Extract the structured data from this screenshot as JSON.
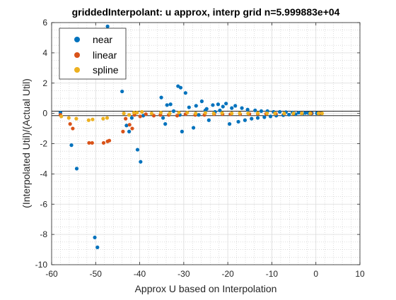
{
  "chart_data": {
    "type": "scatter",
    "title": "griddedInterpolant: u approx, interp grid n=5.999883e+04",
    "xlabel": "Approx U based on Interpolation",
    "ylabel": "(Interpolated Util)/(Actual Util)",
    "xlim": [
      -60,
      10
    ],
    "ylim": [
      -10,
      6
    ],
    "xticks": [
      -60,
      -50,
      -40,
      -30,
      -20,
      -10,
      0,
      10
    ],
    "yticks": [
      -10,
      -8,
      -6,
      -4,
      -2,
      0,
      2,
      4,
      6
    ],
    "xtick_labels": [
      "-60",
      "-50",
      "-40",
      "-30",
      "-20",
      "-10",
      "0",
      "10"
    ],
    "ytick_labels": [
      "-10",
      "-8",
      "-6",
      "-4",
      "-2",
      "0",
      "2",
      "4",
      "6"
    ],
    "grid": true,
    "minor_grid": true,
    "legend_position": "top-left",
    "reference_lines_y": [
      -0.15,
      0.15
    ],
    "series": [
      {
        "name": "near",
        "color": "#0072BD",
        "x": [
          -58,
          -55.5,
          -54.3,
          -50.2,
          -49.6,
          -47.3,
          -44,
          -43,
          -42.4,
          -41.8,
          -40.5,
          -39.8,
          -39.2,
          -35.1,
          -34.7,
          -34.2,
          -33.8,
          -33,
          -32.3,
          -31.3,
          -30.9,
          -30.7,
          -30.4,
          -29.6,
          -28.8,
          -27.8,
          -27.2,
          -26.6,
          -25.9,
          -25.1,
          -24.8,
          -24.3,
          -23.4,
          -22.9,
          -22.2,
          -21.8,
          -21.1,
          -20.4,
          -19.6,
          -19.1,
          -18.3,
          -17.6,
          -16.8,
          -16.1,
          -15.5,
          -14.6,
          -13.8,
          -13.2,
          -12.4,
          -11.7,
          -11,
          -10.3,
          -9.6,
          -9,
          -8.2,
          -7.4,
          -6.8,
          -6.1,
          -5.3,
          -4.6,
          -3.9,
          -3.1,
          -2.4,
          -1.7,
          -0.9,
          0.2,
          1.2
        ],
        "y": [
          0.05,
          -2.1,
          -3.65,
          -8.2,
          -8.85,
          5.75,
          1.45,
          -0.8,
          -1.2,
          -0.3,
          -2.4,
          -3.2,
          -0.15,
          1.05,
          -0.3,
          -0.7,
          0.55,
          0.6,
          0.15,
          1.8,
          -0.1,
          1.7,
          -1.2,
          1.35,
          0.4,
          -0.95,
          0.5,
          -0.1,
          0.8,
          0.2,
          0.3,
          -0.45,
          0.55,
          0.1,
          0.6,
          0.2,
          0.45,
          0.65,
          -0.7,
          0.35,
          0.5,
          -0.55,
          0.35,
          -0.45,
          0.25,
          -0.35,
          0.2,
          -0.3,
          0.15,
          -0.25,
          0.15,
          -0.2,
          0.1,
          -0.15,
          0.1,
          -0.12,
          0.08,
          -0.08,
          0.06,
          -0.05,
          0.05,
          -0.04,
          0.03,
          0.02,
          0.01,
          0.01,
          0.0
        ]
      },
      {
        "name": "linear",
        "color": "#D95319",
        "x": [
          -58,
          -55.8,
          -55.2,
          -51.5,
          -50.8,
          -48.2,
          -47.3,
          -46.9,
          -43.8,
          -43.2,
          -42.3,
          -41.7,
          -41.2,
          -39.9,
          -38.6,
          -36.8,
          -35.3,
          -33.4,
          -31.5,
          -29.6,
          -27.4,
          -25.3,
          -23.1,
          -21.2,
          -19.4,
          -17.2,
          -15.1,
          -13.2,
          -11.3,
          -9.1,
          -7.2,
          -5.1,
          -3.2,
          -1.1,
          0.8
        ],
        "y": [
          -0.1,
          -0.7,
          -1.0,
          -1.95,
          -1.95,
          -1.95,
          -1.85,
          -1.8,
          -1.2,
          -0.35,
          -0.75,
          -1.0,
          -0.1,
          -0.2,
          -0.05,
          -0.15,
          -0.1,
          -0.1,
          -0.15,
          -0.05,
          -0.1,
          -0.1,
          -0.05,
          -0.05,
          -0.05,
          -0.05,
          -0.04,
          -0.03,
          -0.03,
          -0.02,
          -0.02,
          -0.01,
          -0.01,
          0.0,
          0.0
        ]
      },
      {
        "name": "spline",
        "color": "#EDB120",
        "x": [
          -57.8,
          -56.1,
          -54.4,
          -51.6,
          -50.7,
          -48.3,
          -47.4,
          -43.6,
          -42.4,
          -41.3,
          -40.6,
          -39.5,
          -37.3,
          -35.2,
          -33.2,
          -31.1,
          -29.2,
          -27.3,
          -25.1,
          -23.2,
          -21.3,
          -19.1,
          -17.3,
          -15.4,
          -13.2,
          -11.1,
          -9.3,
          -7.2,
          -5.1,
          -3.2,
          -1.3,
          0.6,
          1.4
        ],
        "y": [
          -0.2,
          -0.3,
          -0.35,
          -0.45,
          -0.4,
          -0.35,
          -0.3,
          0.0,
          -0.1,
          0.05,
          0.05,
          0.1,
          0.0,
          0.05,
          0.0,
          0.05,
          0.05,
          0.0,
          0.03,
          0.0,
          0.02,
          0.0,
          0.01,
          0.0,
          0.01,
          0.0,
          0.0,
          0.0,
          0.0,
          0.0,
          0.0,
          0.0,
          0.0
        ]
      }
    ]
  }
}
